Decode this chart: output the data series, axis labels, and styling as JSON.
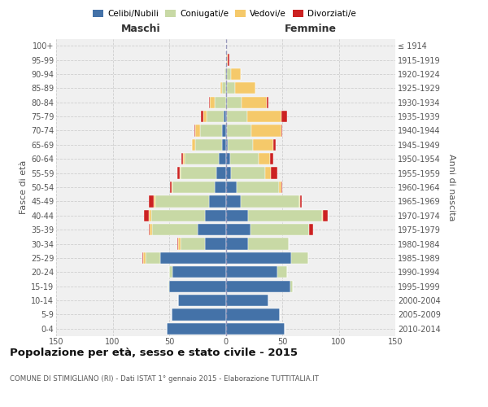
{
  "age_groups": [
    "0-4",
    "5-9",
    "10-14",
    "15-19",
    "20-24",
    "25-29",
    "30-34",
    "35-39",
    "40-44",
    "45-49",
    "50-54",
    "55-59",
    "60-64",
    "65-69",
    "70-74",
    "75-79",
    "80-84",
    "85-89",
    "90-94",
    "95-99",
    "100+"
  ],
  "birth_years": [
    "2010-2014",
    "2005-2009",
    "2000-2004",
    "1995-1999",
    "1990-1994",
    "1985-1989",
    "1980-1984",
    "1975-1979",
    "1970-1974",
    "1965-1969",
    "1960-1964",
    "1955-1959",
    "1950-1954",
    "1945-1949",
    "1940-1944",
    "1935-1939",
    "1930-1934",
    "1925-1929",
    "1920-1924",
    "1915-1919",
    "≤ 1914"
  ],
  "colors": {
    "celibi": "#4472a8",
    "coniugati": "#c8d9a5",
    "vedovi": "#f5c96a",
    "divorziati": "#cc2222",
    "bg": "#ffffff",
    "plot_bg": "#f0f0f0",
    "grid": "#cccccc",
    "dashed_line": "#9999bb"
  },
  "maschi": {
    "celibi": [
      52,
      48,
      42,
      50,
      47,
      58,
      18,
      25,
      18,
      15,
      10,
      8,
      6,
      3,
      3,
      2,
      0,
      0,
      0,
      0,
      0
    ],
    "coniugati": [
      0,
      0,
      0,
      1,
      3,
      13,
      22,
      40,
      48,
      47,
      37,
      32,
      30,
      24,
      20,
      15,
      10,
      3,
      1,
      0,
      0
    ],
    "vedovi": [
      0,
      0,
      0,
      0,
      0,
      2,
      2,
      2,
      2,
      2,
      1,
      1,
      2,
      3,
      4,
      3,
      4,
      2,
      0,
      0,
      0
    ],
    "divorziati": [
      0,
      0,
      0,
      0,
      0,
      1,
      1,
      1,
      4,
      4,
      1,
      2,
      1,
      0,
      1,
      2,
      1,
      0,
      0,
      0,
      0
    ]
  },
  "femmine": {
    "celibi": [
      52,
      48,
      38,
      57,
      46,
      58,
      20,
      22,
      20,
      13,
      10,
      5,
      4,
      2,
      1,
      1,
      1,
      1,
      1,
      0,
      0
    ],
    "coniugati": [
      0,
      0,
      0,
      2,
      8,
      15,
      36,
      52,
      65,
      52,
      37,
      30,
      25,
      22,
      22,
      18,
      13,
      7,
      4,
      1,
      0
    ],
    "vedovi": [
      0,
      0,
      0,
      0,
      0,
      0,
      0,
      0,
      1,
      1,
      2,
      5,
      10,
      18,
      26,
      30,
      22,
      18,
      8,
      1,
      0
    ],
    "divorziati": [
      0,
      0,
      0,
      0,
      0,
      0,
      0,
      3,
      4,
      1,
      1,
      6,
      3,
      2,
      1,
      5,
      2,
      0,
      0,
      1,
      0
    ]
  },
  "xlim": 150,
  "title": "Popolazione per età, sesso e stato civile - 2015",
  "subtitle": "COMUNE DI STIMIGLIANO (RI) - Dati ISTAT 1° gennaio 2015 - Elaborazione TUTTITALIA.IT",
  "xlabel_left": "Maschi",
  "xlabel_right": "Femmine",
  "ylabel_left": "Fasce di età",
  "ylabel_right": "Anni di nascita",
  "legend_labels": [
    "Celibi/Nubili",
    "Coniugati/e",
    "Vedovi/e",
    "Divorziati/e"
  ]
}
